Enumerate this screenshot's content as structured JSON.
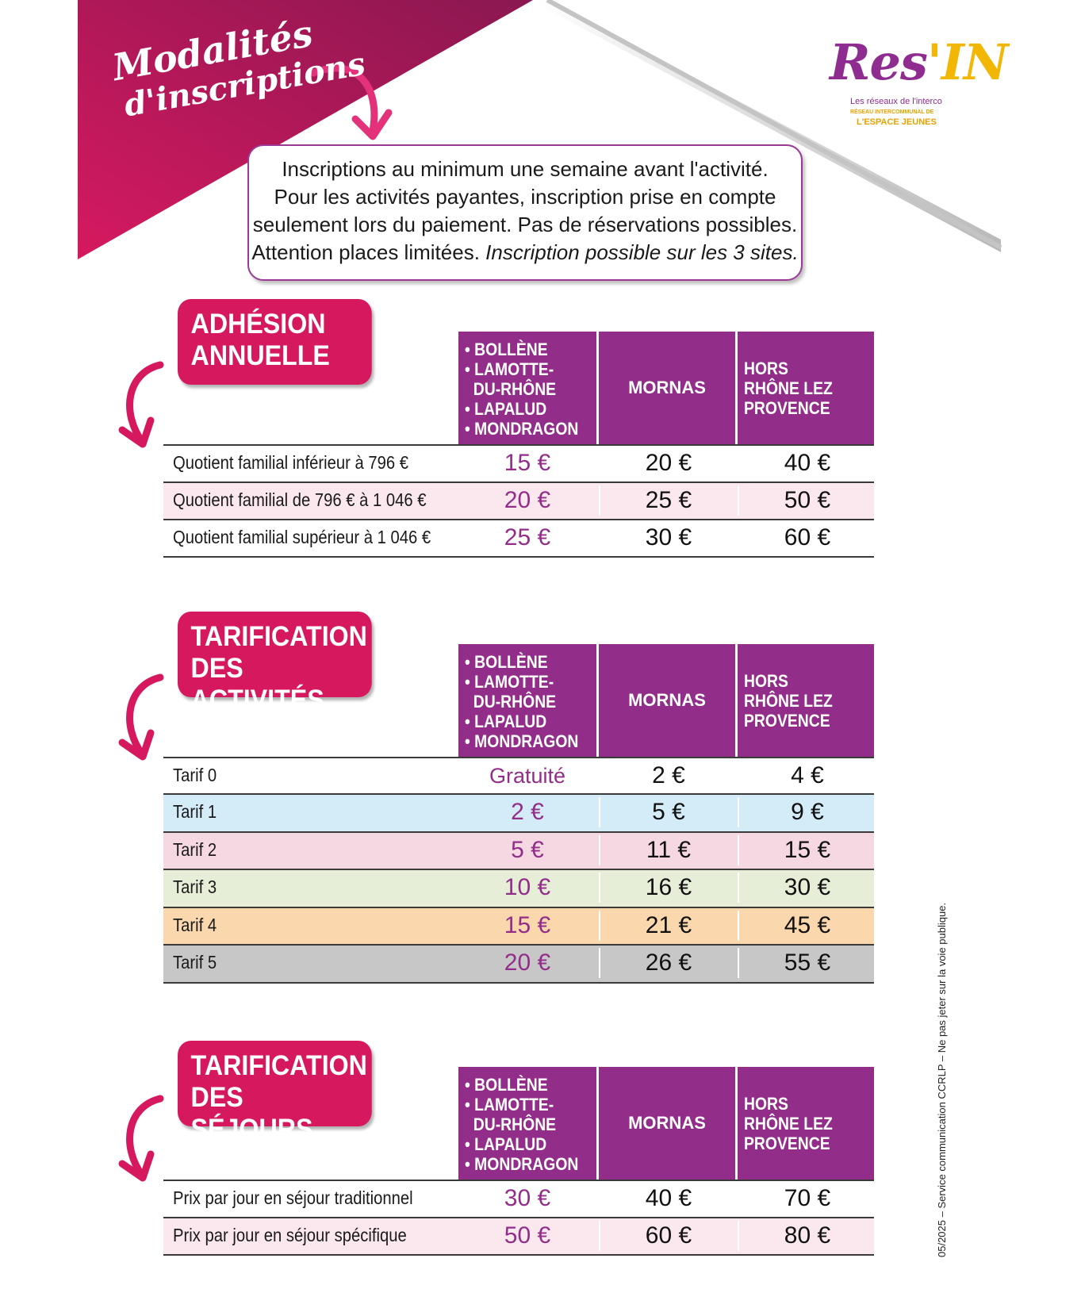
{
  "header": {
    "title_line1": "Modalités",
    "title_line2": "d'inscriptions"
  },
  "logo": {
    "mark_left": "Res",
    "mark_right": "'IN",
    "tagline": "Les réseaux de l'interco",
    "network_line1": "RÉSEAU INTERCOMMUNAL DE",
    "network_line2": "L'ESPACE JEUNES"
  },
  "info": {
    "line1": "Inscriptions au minimum une semaine avant l'activité.",
    "line2": "Pour les activités payantes, inscription prise en compte",
    "line3": "seulement lors du paiement. Pas de réservations possibles.",
    "line4_plain": "Attention places limitées.",
    "line4_italic": "Inscription possible sur les 3 sites."
  },
  "columns": {
    "col1": "• BOLLÈNE\n• LAMOTTE-\n  DU-RHÔNE\n• LAPALUD\n• MONDRAGON",
    "col2": "MORNAS",
    "col3": "HORS\nRHÔNE LEZ\nPROVENCE"
  },
  "colors": {
    "magenta": "#d6195f",
    "purple": "#922e8a",
    "row_pink_light": "#fbe8ee",
    "tarif1": "#d4ebf8",
    "tarif2": "#f6d8e2",
    "tarif3": "#e7eed8",
    "tarif4": "#fbd7ae",
    "tarif5": "#c7c7c7"
  },
  "sections": {
    "adhesion": {
      "label_line1": "ADHÉSION",
      "label_line2": "ANNUELLE",
      "rows": [
        {
          "label": "Quotient familial inférieur à 796 €",
          "v1": "15 €",
          "v2": "20 €",
          "v3": "40 €"
        },
        {
          "label": "Quotient familial de 796 € à 1 046 €",
          "v1": "20 €",
          "v2": "25 €",
          "v3": "50 €"
        },
        {
          "label": "Quotient familial supérieur à 1 046 €",
          "v1": "25 €",
          "v2": "30 €",
          "v3": "60 €"
        }
      ]
    },
    "activites": {
      "label_line1": "TARIFICATION",
      "label_line2": "DES ACTIVITÉS",
      "rows": [
        {
          "label": "Tarif 0",
          "v1": "Gratuité",
          "v2": "2 €",
          "v3": "4 €"
        },
        {
          "label": "Tarif 1",
          "v1": "2 €",
          "v2": "5 €",
          "v3": "9 €"
        },
        {
          "label": "Tarif 2",
          "v1": "5 €",
          "v2": "11 €",
          "v3": "15 €"
        },
        {
          "label": "Tarif 3",
          "v1": "10 €",
          "v2": "16 €",
          "v3": "30 €"
        },
        {
          "label": "Tarif 4",
          "v1": "15 €",
          "v2": "21 €",
          "v3": "45 €"
        },
        {
          "label": "Tarif 5",
          "v1": "20 €",
          "v2": "26 €",
          "v3": "55 €"
        }
      ]
    },
    "sejours": {
      "label_line1": "TARIFICATION",
      "label_line2": "DES SÉJOURS",
      "rows": [
        {
          "label": "Prix par jour en séjour traditionnel",
          "v1": "30 €",
          "v2": "40 €",
          "v3": "70 €"
        },
        {
          "label": "Prix par jour en séjour spécifique",
          "v1": "50 €",
          "v2": "60 €",
          "v3": "80 €"
        }
      ]
    }
  },
  "footer": {
    "side_note": "05/2025 – Service communication CCRLP – Ne pas jeter sur la voie publique."
  }
}
